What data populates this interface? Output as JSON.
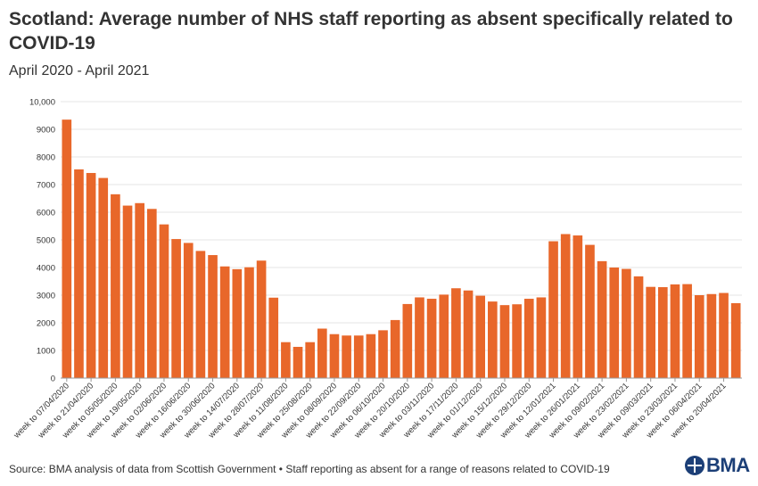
{
  "title": "Scotland: Average number of NHS staff reporting as absent specifically related to COVID-19",
  "subtitle": "April 2020 - April 2021",
  "footer": "Source: BMA analysis of data from Scottish Government • Staff reporting as absent for a range of reasons related to COVID-19",
  "logo": {
    "text": "BMA"
  },
  "colors": {
    "bar": "#e8672a",
    "grid": "#e6e6e6",
    "axis": "#333333"
  },
  "chart_data": {
    "type": "bar",
    "title": "Scotland: Average number of NHS staff reporting as absent specifically related to COVID-19",
    "subtitle": "April 2020 - April 2021",
    "ylim": [
      0,
      10000
    ],
    "ytick_labels": [
      "0",
      "1000",
      "2000",
      "3000",
      "4000",
      "5000",
      "6000",
      "7000",
      "8000",
      "9000",
      "10,000"
    ],
    "yticks": [
      0,
      1000,
      2000,
      3000,
      4000,
      5000,
      6000,
      7000,
      8000,
      9000,
      10000
    ],
    "grid": true,
    "xtick_labels": [
      "week to 07/04/2020",
      "week to 21/04/2020",
      "week to 05/05/2020",
      "week to 19/05/2020",
      "week to 02/06/2020",
      "week to 16/06/2020",
      "week to 30/06/2020",
      "week to 14/07/2020",
      "week to 28/07/2020",
      "week to 11/08/2020",
      "week to 25/08/2020",
      "week to 08/09/2020",
      "week to 22/09/2020",
      "week to 06/10/2020",
      "week to 20/10/2020",
      "week to 03/11/2020",
      "week to 17/11/2020",
      "week to 01/12/2020",
      "week to 15/12/2020",
      "week to 29/12/2020",
      "week to 12/01/2021",
      "week to 26/01/2021",
      "week to 09/02/2021",
      "week to 23/02/2021",
      "week to 09/03/2021",
      "week to 23/03/2021",
      "week to 06/04/2021",
      "week to 20/04/2021"
    ],
    "values": [
      9350,
      7550,
      7420,
      7240,
      6650,
      6240,
      6330,
      6120,
      5560,
      5030,
      4890,
      4600,
      4450,
      4040,
      3940,
      4010,
      4250,
      2910,
      1300,
      1130,
      1300,
      1790,
      1590,
      1540,
      1540,
      1590,
      1730,
      2100,
      2680,
      2920,
      2870,
      3020,
      3250,
      3170,
      2980,
      2770,
      2640,
      2670,
      2870,
      2920,
      4950,
      5210,
      5160,
      4820,
      4230,
      4000,
      3950,
      3680,
      3300,
      3290,
      3390,
      3400,
      3000,
      3040,
      3080,
      2710
    ]
  }
}
